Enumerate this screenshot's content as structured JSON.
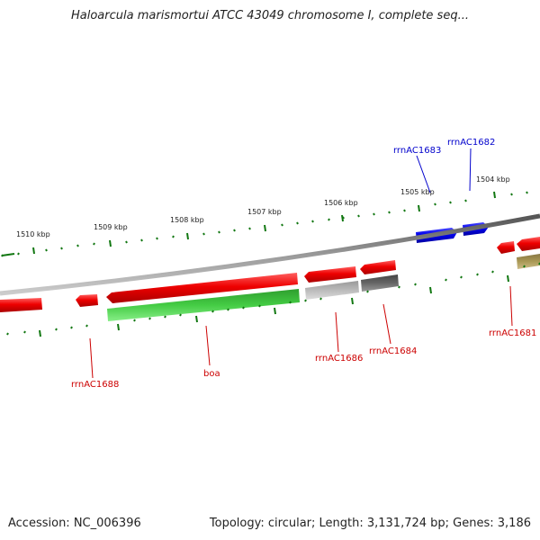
{
  "title": "Haloarcula marismortui ATCC 43049 chromosome I, complete seq...",
  "footer": {
    "accession": "Accession: NC_006396",
    "summary": "Topology: circular; Length: 3,131,724 bp; Genes: 3,186"
  },
  "ticks": [
    "1510 kbp",
    "1509 kbp",
    "1508 kbp",
    "1507 kbp",
    "1506 kbp",
    "1505 kbp",
    "1504 kbp"
  ],
  "labels": {
    "rrnAC1683": "rrnAC1683",
    "rrnAC1682": "rrnAC1682",
    "rrnAC1688": "rrnAC1688",
    "boa": "boa",
    "rrnAC1686": "rrnAC1686",
    "rrnAC1684": "rrnAC1684",
    "rrnAC1681": "rrnAC1681"
  },
  "colors": {
    "forward_strand": "#0000ee",
    "reverse_strand": "#ee0000",
    "cds_green": "#33bb33",
    "cds_gray_light": "#bbbbbb",
    "cds_gray_dark": "#666666",
    "cds_olive": "#aa9955",
    "backbone": "#888888",
    "ticks": "#117711"
  }
}
